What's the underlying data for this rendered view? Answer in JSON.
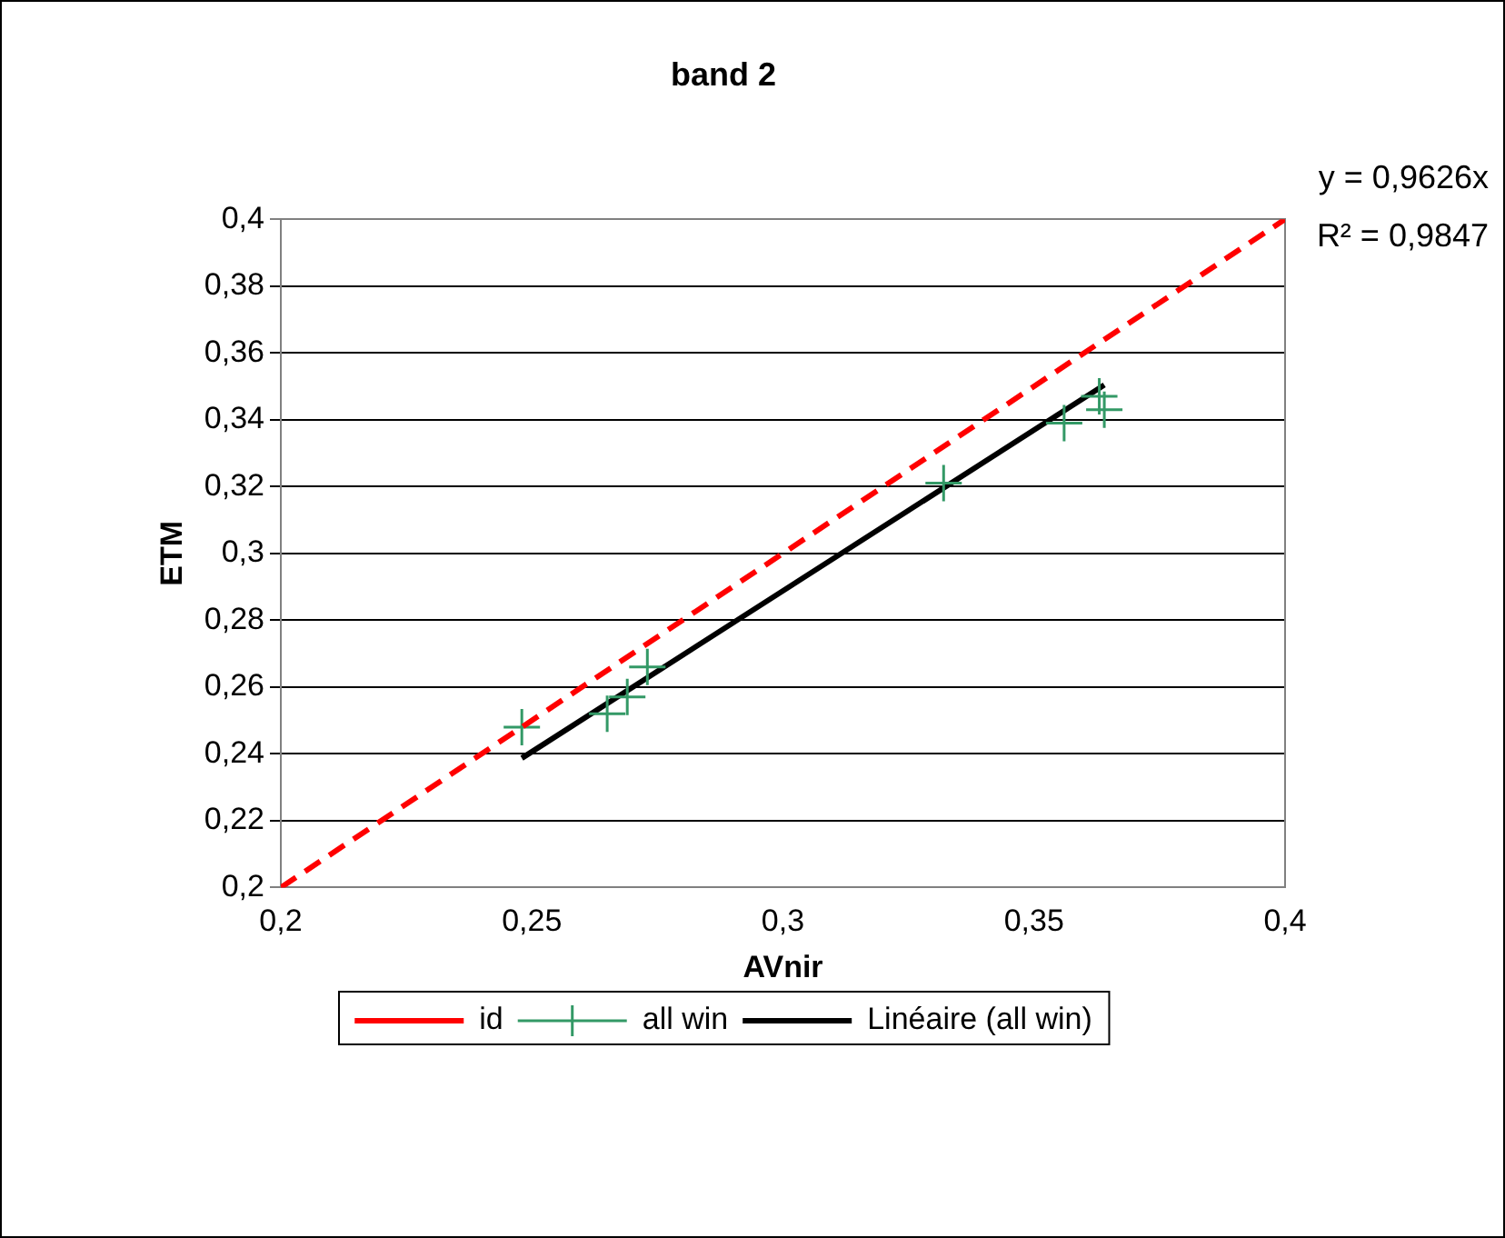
{
  "chart_data": {
    "type": "scatter",
    "title": "band 2",
    "xlabel": "AVnir",
    "ylabel": "ETM",
    "xlim": [
      0.2,
      0.4
    ],
    "xticks": [
      {
        "value": 0.2,
        "label": "0,2"
      },
      {
        "value": 0.25,
        "label": "0,25"
      },
      {
        "value": 0.3,
        "label": "0,3"
      },
      {
        "value": 0.35,
        "label": "0,35"
      },
      {
        "value": 0.4,
        "label": "0,4"
      }
    ],
    "ylim": [
      0.2,
      0.4
    ],
    "yticks": [
      {
        "value": 0.2,
        "label": "0,2"
      },
      {
        "value": 0.22,
        "label": "0,22"
      },
      {
        "value": 0.24,
        "label": "0,24"
      },
      {
        "value": 0.26,
        "label": "0,26"
      },
      {
        "value": 0.28,
        "label": "0,28"
      },
      {
        "value": 0.3,
        "label": "0,3"
      },
      {
        "value": 0.32,
        "label": "0,32"
      },
      {
        "value": 0.34,
        "label": "0,34"
      },
      {
        "value": 0.36,
        "label": "0,36"
      },
      {
        "value": 0.38,
        "label": "0,38"
      },
      {
        "value": 0.4,
        "label": "0,4"
      }
    ],
    "grid": "y",
    "legend": "bottom",
    "annotations": [
      "y = 0,9626x",
      "R² = 0,9847"
    ],
    "series": [
      {
        "name": "id",
        "type": "line",
        "line_style": "dashed",
        "marker": "none",
        "color": "#ff0000",
        "x": [
          0.2,
          0.4
        ],
        "values": [
          0.2,
          0.4
        ]
      },
      {
        "name": "all win",
        "type": "scatter",
        "marker": "cross",
        "color": "#339966",
        "x": [
          0.248,
          0.265,
          0.269,
          0.273,
          0.332,
          0.356,
          0.364,
          0.363
        ],
        "values": [
          0.248,
          0.252,
          0.257,
          0.266,
          0.321,
          0.339,
          0.343,
          0.347
        ]
      },
      {
        "name": "Linéaire (all win)",
        "type": "line",
        "line_style": "solid",
        "marker": "none",
        "color": "#000000",
        "x": [
          0.248,
          0.364
        ],
        "values": [
          0.2387,
          0.3504
        ]
      }
    ]
  }
}
